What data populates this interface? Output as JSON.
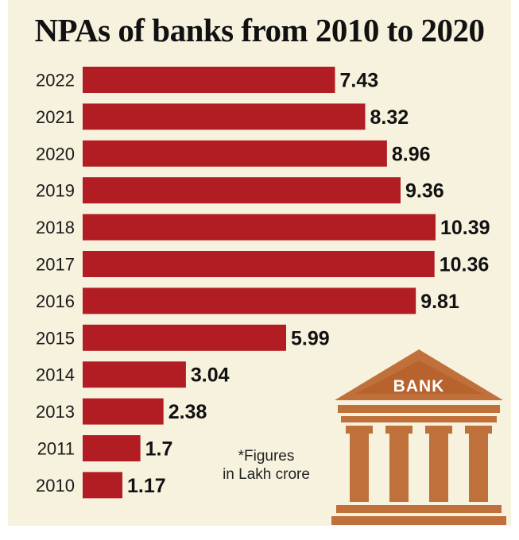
{
  "title": "NPAs of banks from 2010 to 2020",
  "colors": {
    "bar": "#b21d24",
    "background": "#f7f2de",
    "bank_icon": "#c0703a"
  },
  "note": {
    "line1": "*Figures",
    "line2": "in Lakh crore"
  },
  "icon": {
    "name": "bank-icon",
    "label": "BANK"
  },
  "chart_data": {
    "type": "bar",
    "orientation": "horizontal",
    "title": "NPAs of banks from 2010 to 2020",
    "xlabel": "",
    "ylabel": "",
    "unit": "Lakh crore",
    "categories": [
      "2022",
      "2021",
      "2020",
      "2019",
      "2018",
      "2017",
      "2016",
      "2015",
      "2014",
      "2013",
      "2011",
      "2010"
    ],
    "values": [
      7.43,
      8.32,
      8.96,
      9.36,
      10.39,
      10.36,
      9.81,
      5.99,
      3.04,
      2.38,
      1.7,
      1.17
    ],
    "value_labels": [
      "7.43",
      "8.32",
      "8.96",
      "9.36",
      "10.39",
      "10.36",
      "9.81",
      "5.99",
      "3.04",
      "2.38",
      "1.7",
      "1.17"
    ],
    "xlim": [
      0,
      10.39
    ],
    "grid": false,
    "legend": "none"
  }
}
